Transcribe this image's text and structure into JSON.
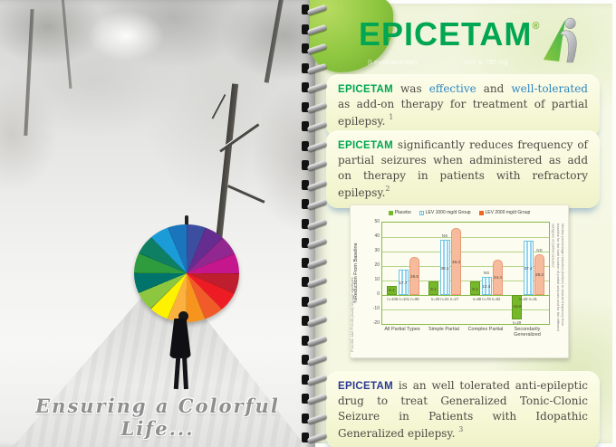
{
  "left_page": {
    "caption": "Ensuring a Colorful Life..."
  },
  "right_page": {
    "logo": {
      "brand": "EPICETAM",
      "registered": "®",
      "tagline_left": "(Levetiracetam)",
      "tagline_right": "500 & 750 mg"
    },
    "callout1": {
      "brand": "EPICETAM",
      "t1": " was ",
      "hl1": "effective",
      "t2": " and ",
      "hl2": "well-tolerated",
      "t3": " as add-on therapy for treatment of partial epilepsy.",
      "ref": "1"
    },
    "callout2": {
      "brand": "EPICETAM",
      "t1": " significantly reduces frequency of partial seizures when administered as add on therapy in patients with refractory epilepsy.",
      "ref": "2"
    },
    "callout3": {
      "brand": "EPICETAM",
      "t1": " is an well tolerated anti-epileptic drug to treat Generalized Tonic-Clonic Seizure in Patients with Idopathic Generalized epilepsy.",
      "ref": "3"
    }
  },
  "colors": {
    "brand_green": "#00a651",
    "brand_blue": "#2b3990",
    "highlight_blue": "#2e86c1",
    "placebo_green": "#76b82a",
    "lev1000_blue_stripe": "#8fd4f0",
    "lev2000_salmon": "#f6bb9d",
    "legend_orange": "#f26522",
    "grid_green": "#86b945"
  },
  "chart_data": {
    "type": "bar",
    "title": "",
    "xlabel": "",
    "ylabel": "%Reduction From Baseline",
    "ylim": [
      -20,
      50
    ],
    "yticks": [
      50,
      40,
      30,
      20,
      10,
      0,
      -10,
      -20
    ],
    "grid": true,
    "legend_position": "top",
    "categories": [
      "All Partial Types",
      "Simple Partial",
      "Complex Partial",
      "Secondarily Generalized"
    ],
    "n_labels": [
      "n=106 n=101 n=98",
      "n=29 n=31 n=27",
      "n=88 n=78 n=82",
      "n=28 n=31"
    ],
    "neg_bar_n_label": "n=29",
    "series": [
      {
        "name": "Placebo",
        "color": "#76b82a",
        "legend_color": "#76b82a",
        "values": [
          6.1,
          9.1,
          9.1,
          -16.8
        ],
        "sig": [
          "",
          "",
          "",
          ""
        ]
      },
      {
        "name": "LEV 1000 mg/d Group",
        "color": "#8fd4f0",
        "legend_color": "#8fd4f0",
        "values": [
          17.7,
          38.1,
          12.4,
          37.4
        ],
        "sig": [
          "",
          "NS",
          "NS",
          ""
        ]
      },
      {
        "name": "LEV 2000 mg/d Group",
        "color": "#f6bb9d",
        "legend_color": "#f26522",
        "values": [
          26.5,
          46.3,
          24.4,
          28.2
        ],
        "sig": [
          "",
          "",
          "",
          "NS"
        ]
      }
    ],
    "left_note": "P<0.001 1&2 P<0.03 (level) NS=not significant",
    "right_note": "Median percentage reduction (before) in seizure frequency from baseline for the total number of partial seizures and for the different subtypes of partial seizures"
  }
}
